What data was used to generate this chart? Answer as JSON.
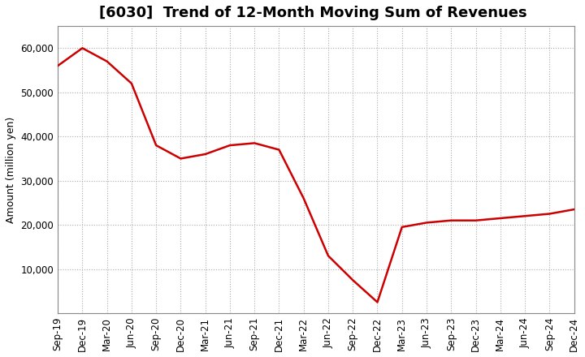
{
  "title": "[6030]  Trend of 12-Month Moving Sum of Revenues",
  "ylabel": "Amount (million yen)",
  "background_color": "#ffffff",
  "grid_color": "#aaaaaa",
  "line_color": "#cc0000",
  "x_labels": [
    "Sep-19",
    "Dec-19",
    "Mar-20",
    "Jun-20",
    "Sep-20",
    "Dec-20",
    "Mar-21",
    "Jun-21",
    "Sep-21",
    "Dec-21",
    "Mar-22",
    "Jun-22",
    "Sep-22",
    "Dec-22",
    "Mar-23",
    "Jun-23",
    "Sep-23",
    "Dec-23",
    "Mar-24",
    "Jun-24",
    "Sep-24",
    "Dec-24"
  ],
  "values": [
    56000,
    60000,
    57000,
    52000,
    38000,
    35000,
    36000,
    38000,
    38500,
    37000,
    26000,
    13000,
    7500,
    2500,
    19500,
    20500,
    21000,
    21000,
    21500,
    22000,
    22500,
    23500
  ],
  "ylim": [
    0,
    65000
  ],
  "yticks": [
    10000,
    20000,
    30000,
    40000,
    50000,
    60000
  ],
  "title_fontsize": 13,
  "axis_fontsize": 9,
  "tick_fontsize": 8.5
}
